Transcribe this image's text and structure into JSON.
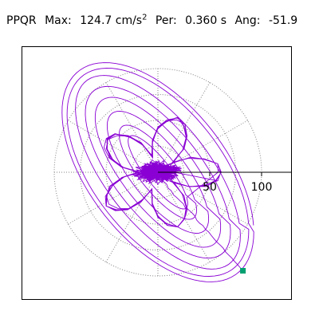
{
  "header": {
    "station": "PPQR",
    "max_label": "Max:",
    "max_value": "124.7 cm/s",
    "max_exp": "2",
    "per_label": "Per:",
    "per_value": "0.360 s",
    "ang_label": "Ang:",
    "ang_value": "-51.9"
  },
  "chart_data": {
    "type": "polar-orbit",
    "radial_ticks": [
      50,
      100
    ],
    "radial_tick_labels": [
      "50",
      "100"
    ],
    "radial_max": 124.7,
    "rings": [
      25,
      50,
      75,
      100
    ],
    "spokes_deg": [
      0,
      30,
      60,
      90,
      120,
      150,
      180,
      210,
      240,
      270,
      300,
      330
    ],
    "orientation_deg": -51.9,
    "colors": {
      "trace": "#8a00d4",
      "end_marker": "#00a070",
      "grid": "#808080",
      "axis": "#000000"
    }
  }
}
